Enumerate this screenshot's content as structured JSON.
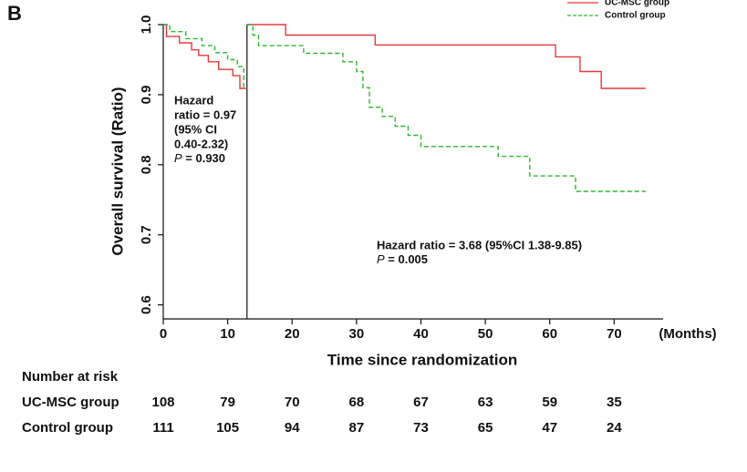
{
  "chart_data": {
    "type": "step-line",
    "panel_label": "B",
    "xlabel": "Time since randomization",
    "xunit": "(Months)",
    "ylabel": "Overall survival (Ratio)",
    "xlim": [
      0,
      77.6
    ],
    "ylim": [
      0.58,
      1.0
    ],
    "xticks": [
      0,
      10,
      20,
      30,
      40,
      50,
      60,
      70
    ],
    "yticks": [
      0.6,
      0.7,
      0.8,
      0.9,
      {
        "value": 1,
        "label": "1.0"
      }
    ],
    "vline": 13,
    "legend": "top-right",
    "series": [
      {
        "name": "UC-MSC group",
        "color": "#e8393c",
        "dash": "solid",
        "x": [
          0,
          0.5,
          0.5,
          2.5,
          2.5,
          4.4,
          4.4,
          5.5,
          5.5,
          7,
          7,
          8.6,
          8.6,
          10.8,
          10.8,
          11.9,
          11.9,
          13,
          null,
          13,
          19,
          19,
          32.9,
          32.9,
          60.9,
          60.9,
          64.7,
          64.7,
          68,
          68,
          74.9
        ],
        "values": [
          1,
          1,
          0.983,
          0.983,
          0.974,
          0.974,
          0.964,
          0.964,
          0.956,
          0.956,
          0.947,
          0.947,
          0.936,
          0.936,
          0.927,
          0.927,
          0.909,
          0.909,
          null,
          1,
          1,
          0.985,
          0.985,
          0.971,
          0.971,
          0.954,
          0.954,
          0.933,
          0.933,
          0.909,
          0.909
        ]
      },
      {
        "name": "Control group",
        "color": "#2db82d",
        "dash": "dashed",
        "x": [
          0,
          1,
          1,
          3.5,
          3.5,
          6,
          6,
          8,
          8,
          10,
          10,
          11.5,
          11.5,
          12.5,
          12.5,
          13,
          null,
          13,
          13.9,
          13.9,
          14.8,
          14.8,
          21.8,
          21.8,
          27.9,
          27.9,
          30,
          30,
          31,
          31,
          32,
          32,
          34,
          34,
          36,
          36,
          38,
          38,
          40,
          40,
          52,
          52,
          56.9,
          56.9,
          64,
          64,
          74.9
        ],
        "values": [
          1,
          1,
          0.99,
          0.99,
          0.98,
          0.98,
          0.97,
          0.97,
          0.96,
          0.96,
          0.95,
          0.95,
          0.94,
          0.94,
          0.91,
          0.91,
          null,
          1,
          1,
          0.985,
          0.985,
          0.97,
          0.97,
          0.959,
          0.959,
          0.947,
          0.947,
          0.933,
          0.933,
          0.91,
          0.91,
          0.882,
          0.882,
          0.869,
          0.869,
          0.855,
          0.855,
          0.842,
          0.842,
          0.826,
          0.826,
          0.812,
          0.812,
          0.784,
          0.784,
          0.762,
          0.762
        ]
      }
    ],
    "annotations": [
      {
        "lines": [
          "Hazard",
          "ratio = 0.97",
          "(95% CI",
          " 0.40-2.32)"
        ],
        "p_label": "P",
        "p_value": " = 0.930"
      },
      {
        "lines": [
          "Hazard ratio = 3.68 (95%CI 1.38-9.85)"
        ],
        "p_label": "P",
        "p_value": " = 0.005"
      }
    ],
    "risk_table": {
      "title": "Number at risk",
      "rows": [
        {
          "name": "UC-MSC  group",
          "values": [
            108,
            79,
            70,
            68,
            67,
            63,
            59,
            35
          ]
        },
        {
          "name": "Control group",
          "values": [
            111,
            105,
            94,
            87,
            73,
            65,
            47,
            24
          ]
        }
      ]
    }
  }
}
